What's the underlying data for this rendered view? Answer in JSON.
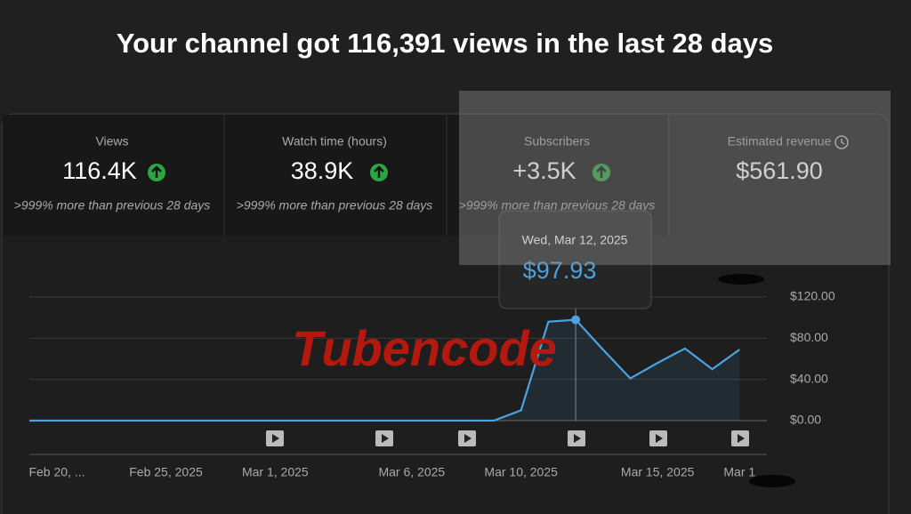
{
  "header": {
    "title": "Your channel got 116,391 views in the last 28 days"
  },
  "cards": [
    {
      "label": "Views",
      "value": "116.4K",
      "change": ">999% more than previous 28 days",
      "trend": "up"
    },
    {
      "label": "Watch time (hours)",
      "value": "38.9K",
      "change": ">999% more than previous 28 days",
      "trend": "up"
    },
    {
      "label": "Subscribers",
      "value": "+3.5K",
      "change": ">999% more than previous 28 days",
      "trend": "up"
    },
    {
      "label": "Estimated revenue",
      "value": "$561.90"
    }
  ],
  "watermark": "Tubencode",
  "chart_data": {
    "type": "line",
    "x": [
      "2025-02-20",
      "2025-02-21",
      "2025-02-22",
      "2025-02-23",
      "2025-02-24",
      "2025-02-25",
      "2025-02-26",
      "2025-02-27",
      "2025-02-28",
      "2025-03-01",
      "2025-03-02",
      "2025-03-03",
      "2025-03-04",
      "2025-03-05",
      "2025-03-06",
      "2025-03-07",
      "2025-03-08",
      "2025-03-09",
      "2025-03-10",
      "2025-03-11",
      "2025-03-12",
      "2025-03-13",
      "2025-03-14",
      "2025-03-15",
      "2025-03-16",
      "2025-03-17",
      "2025-03-18"
    ],
    "values": [
      0,
      0,
      0,
      0,
      0,
      0,
      0,
      0,
      0,
      0,
      0,
      0,
      0,
      0,
      0,
      0,
      0,
      0,
      10,
      96,
      97.93,
      69,
      41,
      56,
      70,
      50,
      69
    ],
    "value_labels": [
      null,
      null,
      null,
      null,
      null,
      null,
      null,
      null,
      null,
      null,
      null,
      null,
      null,
      null,
      null,
      null,
      null,
      null,
      null,
      null,
      "$97.93",
      null,
      null,
      null,
      null,
      null,
      null
    ],
    "tooltip_title": "Wed, Mar 12, 2025",
    "color": "#4aa3df",
    "xlim": [
      "2025-02-20",
      "2025-03-19"
    ],
    "xticks": [
      {
        "value": "2025-02-20",
        "label": "Feb 20, ..."
      },
      {
        "value": "2025-02-25",
        "label": "Feb 25, 2025"
      },
      {
        "value": "2025-03-01",
        "label": "Mar 1, 2025"
      },
      {
        "value": "2025-03-06",
        "label": "Mar 6, 2025"
      },
      {
        "value": "2025-03-10",
        "label": "Mar 10, 2025"
      },
      {
        "value": "2025-03-15",
        "label": "Mar 15, 2025"
      },
      {
        "value": "2025-03-18",
        "label": "Mar 1"
      }
    ],
    "ylim": [
      0,
      120
    ],
    "yticks": [
      {
        "value": 0,
        "label": "$0.00"
      },
      {
        "value": 40,
        "label": "$40.00"
      },
      {
        "value": 80,
        "label": "$80.00"
      },
      {
        "value": 120,
        "label": "$120.00"
      }
    ],
    "grid": true
  }
}
